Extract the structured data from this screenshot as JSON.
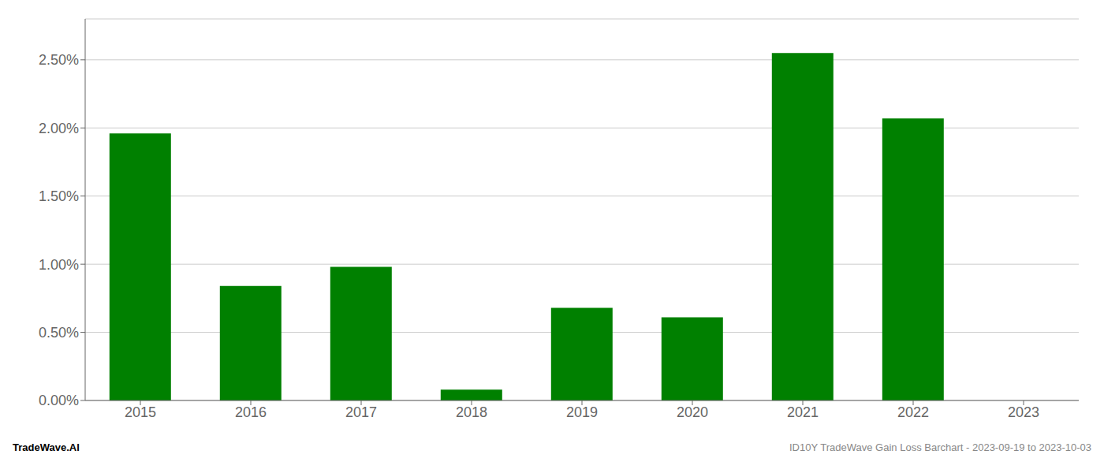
{
  "chart_data": {
    "type": "bar",
    "categories": [
      "2015",
      "2016",
      "2017",
      "2018",
      "2019",
      "2020",
      "2021",
      "2022",
      "2023"
    ],
    "values": [
      0.0196,
      0.0084,
      0.0098,
      0.0008,
      0.0068,
      0.0061,
      0.0255,
      0.0207,
      0.0
    ],
    "color": "#008000",
    "ylim": [
      0.0,
      0.028
    ],
    "yticks": [
      {
        "value": 0.0,
        "label": "0.00%"
      },
      {
        "value": 0.005,
        "label": "0.50%"
      },
      {
        "value": 0.01,
        "label": "1.00%"
      },
      {
        "value": 0.015,
        "label": "1.50%"
      },
      {
        "value": 0.02,
        "label": "2.00%"
      },
      {
        "value": 0.025,
        "label": "2.50%"
      }
    ],
    "grid": true,
    "annotations": [
      "TradeWave.AI",
      "ID10Y TradeWave Gain Loss Barchart - 2023-09-19 to 2023-10-03"
    ]
  }
}
